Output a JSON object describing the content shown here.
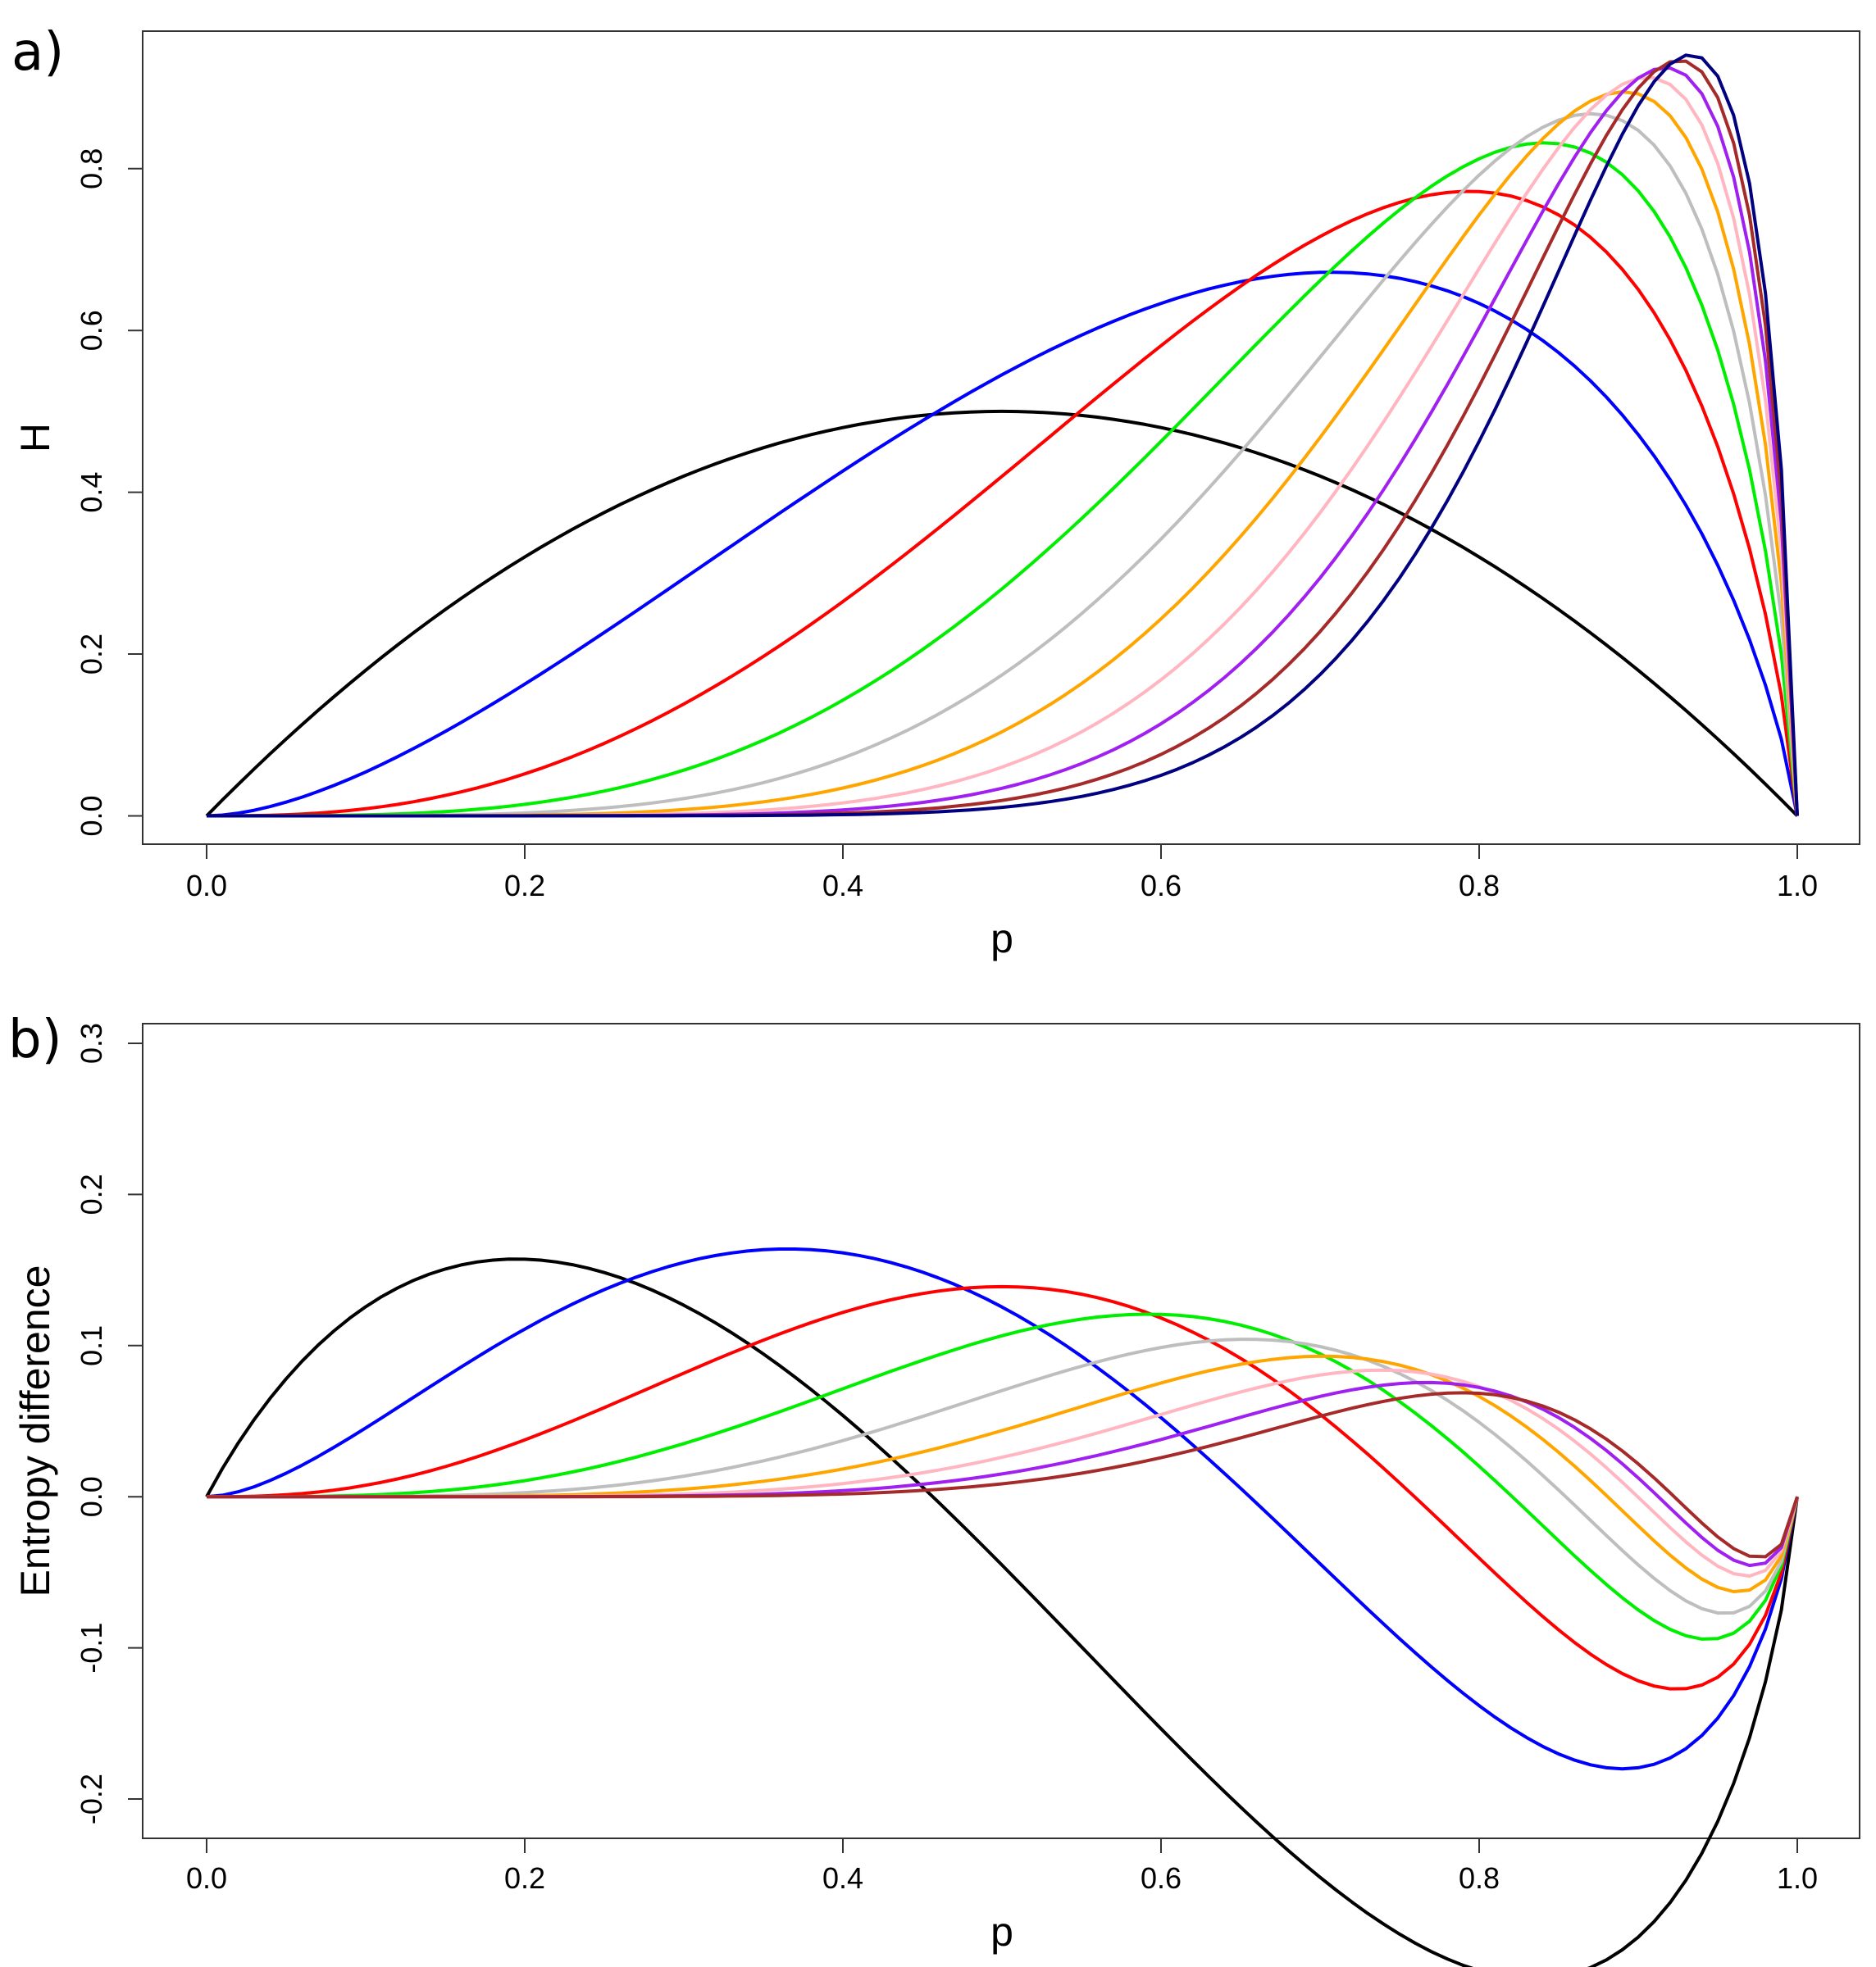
{
  "chart_data": [
    {
      "panel_label": "a)",
      "type": "line",
      "xlabel": "p",
      "ylabel": "H",
      "xlim": [
        0,
        1
      ],
      "ylim": [
        -0.035,
        0.97
      ],
      "xticks": [
        "0.0",
        "0.2",
        "0.4",
        "0.6",
        "0.8",
        "1.0"
      ],
      "yticks": [
        "0.0",
        "0.2",
        "0.4",
        "0.6",
        "0.8"
      ],
      "grid": false,
      "series": [
        {
          "name": "black",
          "color": "#000000",
          "peak": {
            "x": 0.5,
            "y": 0.5
          }
        },
        {
          "name": "blue",
          "color": "#0000ff",
          "peak": {
            "x": 0.7,
            "y": 0.672
          }
        },
        {
          "name": "red",
          "color": "#ff0000",
          "peak": {
            "x": 0.79,
            "y": 0.772
          }
        },
        {
          "name": "green",
          "color": "#00ee00",
          "peak": {
            "x": 0.835,
            "y": 0.832
          }
        },
        {
          "name": "gray",
          "color": "#bebebe",
          "peak": {
            "x": 0.865,
            "y": 0.868
          }
        },
        {
          "name": "orange",
          "color": "#ffa500",
          "peak": {
            "x": 0.885,
            "y": 0.895
          }
        },
        {
          "name": "pink",
          "color": "#ffb6c1",
          "peak": {
            "x": 0.9,
            "y": 0.913
          }
        },
        {
          "name": "purple",
          "color": "#a020f0",
          "peak": {
            "x": 0.912,
            "y": 0.925
          }
        },
        {
          "name": "brown",
          "color": "#a52a2a",
          "peak": {
            "x": 0.922,
            "y": 0.934
          }
        },
        {
          "name": "navy",
          "color": "#000080",
          "peak": {
            "x": 0.93,
            "y": 0.941
          }
        }
      ]
    },
    {
      "panel_label": "b)",
      "type": "line",
      "xlabel": "p",
      "ylabel": "Entropy difference",
      "xlim": [
        0,
        1
      ],
      "ylim": [
        -0.226,
        0.313
      ],
      "xticks": [
        "0.0",
        "0.2",
        "0.4",
        "0.6",
        "0.8",
        "1.0"
      ],
      "yticks": [
        "-0.2",
        "-0.1",
        "0.0",
        "0.1",
        "0.2",
        "0.3"
      ],
      "grid": false,
      "series": [
        {
          "name": "black",
          "color": "#000000"
        },
        {
          "name": "blue",
          "color": "#0000ff"
        },
        {
          "name": "red",
          "color": "#ff0000"
        },
        {
          "name": "green",
          "color": "#00ee00"
        },
        {
          "name": "gray",
          "color": "#bebebe"
        },
        {
          "name": "orange",
          "color": "#ffa500"
        },
        {
          "name": "pink",
          "color": "#ffb6c1"
        },
        {
          "name": "purple",
          "color": "#a020f0"
        },
        {
          "name": "brown",
          "color": "#a52a2a"
        }
      ]
    }
  ]
}
